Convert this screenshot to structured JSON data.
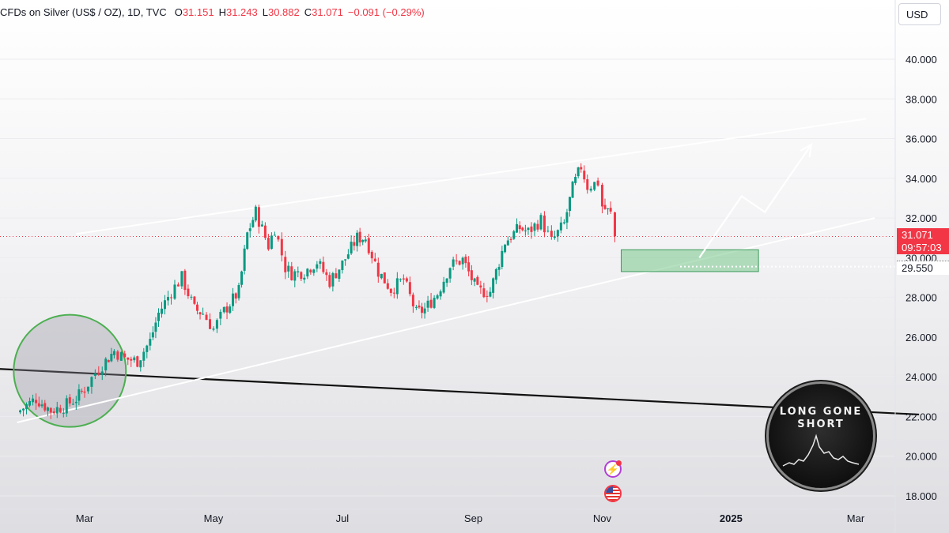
{
  "header": {
    "symbol": "CFDs on Silver (US$ / OZ), 1D, TVC",
    "open_label": "O",
    "open": "31.151",
    "high_label": "H",
    "high": "31.243",
    "low_label": "L",
    "low": "30.882",
    "close_label": "C",
    "close": "31.071",
    "change": "−0.091 (−0.29%)"
  },
  "currency": "USD",
  "price_labels": {
    "current": "31.071",
    "countdown": "09:57:03",
    "level": "29.550"
  },
  "watermark": {
    "line1": "LONG GONE",
    "line2": "SHORT"
  },
  "icons": {
    "flash": "lightning-icon",
    "flag": "us-flag-icon"
  },
  "colors": {
    "up": "#089981",
    "down": "#f23645",
    "zone": "#8fd19e",
    "circle": "#4caf50"
  },
  "chart_data": {
    "type": "candlestick",
    "y_ticks": [
      "40.000",
      "38.000",
      "36.000",
      "34.000",
      "32.000",
      "30.000",
      "28.000",
      "26.000",
      "24.000",
      "22.000",
      "20.000",
      "18.000"
    ],
    "x_ticks": [
      "Mar",
      "May",
      "Jul",
      "Sep",
      "Nov",
      "2025",
      "Mar"
    ],
    "ylim": [
      17.2,
      42.4
    ],
    "price_path": [
      [
        "2024-01-29",
        22.2
      ],
      [
        "2024-02-07",
        22.9
      ],
      [
        "2024-02-14",
        22.3
      ],
      [
        "2024-02-20",
        22.5
      ],
      [
        "2024-02-26",
        22.9
      ],
      [
        "2024-03-01",
        23.4
      ],
      [
        "2024-03-06",
        24.2
      ],
      [
        "2024-03-11",
        24.8
      ],
      [
        "2024-03-15",
        25.3
      ],
      [
        "2024-03-20",
        24.9
      ],
      [
        "2024-03-26",
        24.8
      ],
      [
        "2024-04-01",
        25.8
      ],
      [
        "2024-04-05",
        27.2
      ],
      [
        "2024-04-11",
        28.3
      ],
      [
        "2024-04-16",
        29.0
      ],
      [
        "2024-04-22",
        27.4
      ],
      [
        "2024-04-26",
        27.2
      ],
      [
        "2024-05-01",
        26.4
      ],
      [
        "2024-05-06",
        27.3
      ],
      [
        "2024-05-13",
        28.3
      ],
      [
        "2024-05-17",
        31.2
      ],
      [
        "2024-05-21",
        32.3
      ],
      [
        "2024-05-27",
        30.6
      ],
      [
        "2024-05-30",
        31.5
      ],
      [
        "2024-06-04",
        29.5
      ],
      [
        "2024-06-07",
        29.2
      ],
      [
        "2024-06-13",
        29.3
      ],
      [
        "2024-06-19",
        29.8
      ],
      [
        "2024-06-25",
        28.8
      ],
      [
        "2024-07-01",
        29.7
      ],
      [
        "2024-07-08",
        31.0
      ],
      [
        "2024-07-12",
        31.0
      ],
      [
        "2024-07-18",
        29.3
      ],
      [
        "2024-07-24",
        28.4
      ],
      [
        "2024-07-30",
        28.9
      ],
      [
        "2024-08-05",
        27.2
      ],
      [
        "2024-08-09",
        27.4
      ],
      [
        "2024-08-15",
        28.2
      ],
      [
        "2024-08-21",
        29.6
      ],
      [
        "2024-08-27",
        29.9
      ],
      [
        "2024-09-03",
        28.3
      ],
      [
        "2024-09-09",
        28.3
      ],
      [
        "2024-09-16",
        30.8
      ],
      [
        "2024-09-23",
        31.5
      ],
      [
        "2024-09-27",
        31.3
      ],
      [
        "2024-10-03",
        31.9
      ],
      [
        "2024-10-08",
        30.8
      ],
      [
        "2024-10-14",
        31.7
      ],
      [
        "2024-10-18",
        33.5
      ],
      [
        "2024-10-22",
        34.6
      ],
      [
        "2024-10-25",
        33.6
      ],
      [
        "2024-10-30",
        33.8
      ],
      [
        "2024-11-01",
        32.6
      ],
      [
        "2024-11-05",
        32.2
      ],
      [
        "2024-11-07",
        31.07
      ]
    ],
    "trendlines": {
      "upper_channel": [
        [
          "2024-02-26",
          31.2
        ],
        [
          "2025-03-06",
          37.0
        ]
      ],
      "lower_channel": [
        [
          "2024-01-29",
          21.7
        ],
        [
          "2025-03-10",
          32.0
        ]
      ],
      "black_support": [
        [
          "2024-01-01",
          24.5
        ],
        [
          "2025-03-31",
          22.1
        ]
      ]
    },
    "projection": [
      [
        "2024-12-17",
        30.0
      ],
      [
        "2025-01-06",
        33.1
      ],
      [
        "2025-01-17",
        32.3
      ],
      [
        "2025-02-08",
        35.7
      ]
    ],
    "zone": {
      "x": [
        "2024-11-10",
        "2025-01-14"
      ],
      "y": [
        29.3,
        30.4
      ]
    },
    "level_line": 29.55,
    "current_price": 31.071,
    "highlight_circle": {
      "center": [
        "2024-02-23",
        24.3
      ]
    }
  }
}
